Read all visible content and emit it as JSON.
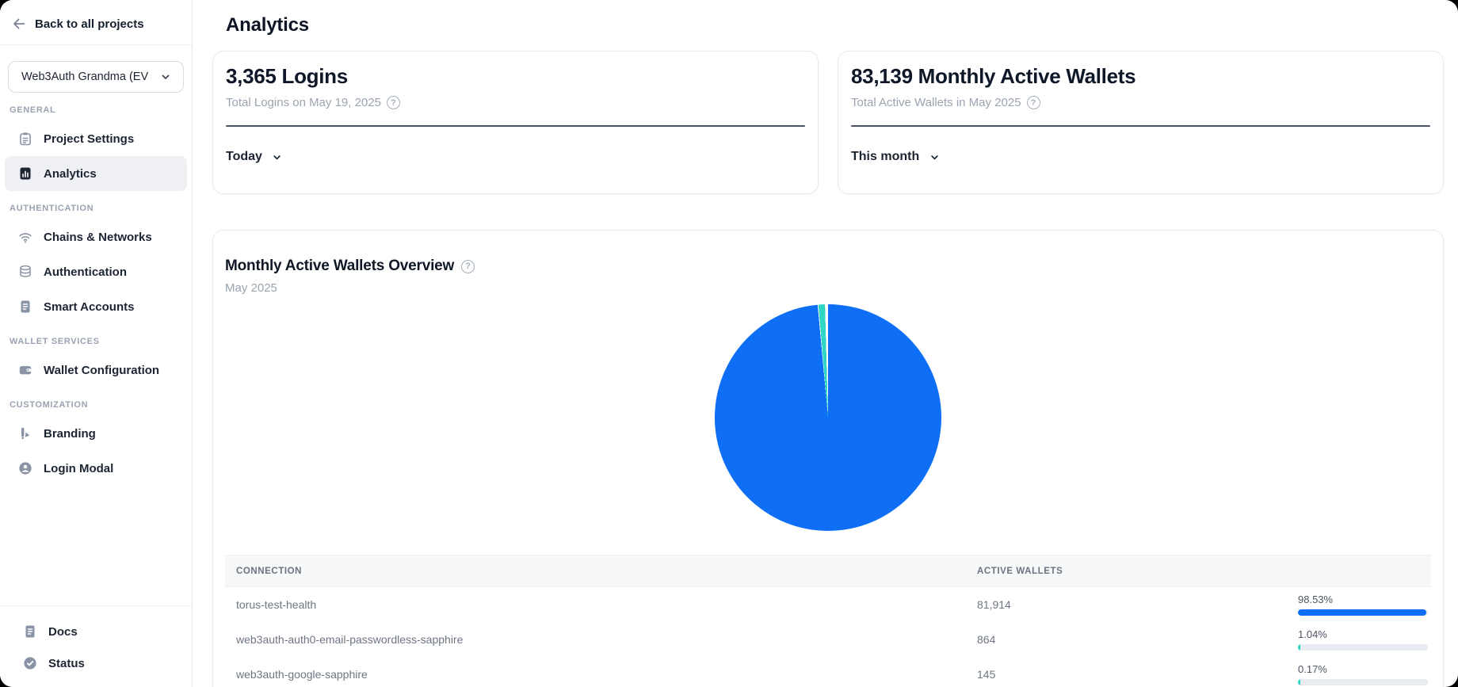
{
  "window": {
    "title": "Analytics"
  },
  "colors": {
    "primary_blue": "#0e6ff6",
    "teal": "#2fd6c3",
    "bar_track": "#e8ebef",
    "stat_divider_dark": "#4a5260",
    "active_nav_bg": "#eef0f3"
  },
  "icons": {
    "help_glyph": "?"
  },
  "sidebar": {
    "back_label": "Back to all projects",
    "project_selector": {
      "value": "Web3Auth Grandma (EV",
      "icon": "chevron-down-icon"
    },
    "sections": [
      {
        "label": "GENERAL",
        "items": [
          {
            "label": "Project Settings",
            "icon": "clipboard-icon",
            "active": false
          },
          {
            "label": "Analytics",
            "icon": "analytics-doc-icon",
            "active": true
          }
        ]
      },
      {
        "label": "AUTHENTICATION",
        "items": [
          {
            "label": "Chains & Networks",
            "icon": "signal-icon",
            "active": false
          },
          {
            "label": "Authentication",
            "icon": "database-icon",
            "active": false
          },
          {
            "label": "Smart Accounts",
            "icon": "document-icon",
            "active": false
          }
        ]
      },
      {
        "label": "WALLET SERVICES",
        "items": [
          {
            "label": "Wallet Configuration",
            "icon": "wallet-icon",
            "active": false
          }
        ]
      },
      {
        "label": "CUSTOMIZATION",
        "items": [
          {
            "label": "Branding",
            "icon": "brush-icon",
            "active": false
          },
          {
            "label": "Login Modal",
            "icon": "user-circle-icon",
            "active": false
          }
        ]
      }
    ],
    "footer_items": [
      {
        "label": "Docs",
        "icon": "document-icon"
      },
      {
        "label": "Status",
        "icon": "check-circle-icon"
      }
    ]
  },
  "main": {
    "heading": "Analytics",
    "stat_cards": [
      {
        "title": "3,365 Logins",
        "subtitle": "Total Logins on May 19, 2025",
        "filter_label": "Today"
      },
      {
        "title": "83,139 Monthly Active Wallets",
        "subtitle": "Total Active Wallets in May 2025",
        "filter_label": "This month"
      }
    ],
    "overview": {
      "title": "Monthly Active Wallets Overview",
      "subtitle": "May 2025",
      "table": {
        "headers": [
          "CONNECTION",
          "ACTIVE WALLETS"
        ],
        "rows": [
          {
            "connection": "torus-test-health",
            "active_wallets": "81,914",
            "percent_label": "98.53%",
            "percent": 98.53,
            "bar_color": "#0e6ff6"
          },
          {
            "connection": "web3auth-auth0-email-passwordless-sapphire",
            "active_wallets": "864",
            "percent_label": "1.04%",
            "percent": 1.04,
            "bar_color": "#2fd6c3"
          },
          {
            "connection": "web3auth-google-sapphire",
            "active_wallets": "145",
            "percent_label": "0.17%",
            "percent": 0.17,
            "bar_color": "#2fd6c3"
          }
        ]
      }
    }
  },
  "chart_data": {
    "type": "pie",
    "title": "Monthly Active Wallets Overview",
    "subtitle": "May 2025",
    "labels": [
      "torus-test-health",
      "web3auth-auth0-email-passwordless-sapphire",
      "web3auth-google-sapphire"
    ],
    "values": [
      81914,
      864,
      145
    ],
    "percentages": [
      98.53,
      1.04,
      0.17
    ],
    "colors": [
      "#0e6ff6",
      "#2fd6c3",
      "#ffffff"
    ],
    "total": 83139,
    "total_label": "83,139 Monthly Active Wallets",
    "legend": "none",
    "start_angle_deg": 0,
    "direction": "clockwise"
  }
}
